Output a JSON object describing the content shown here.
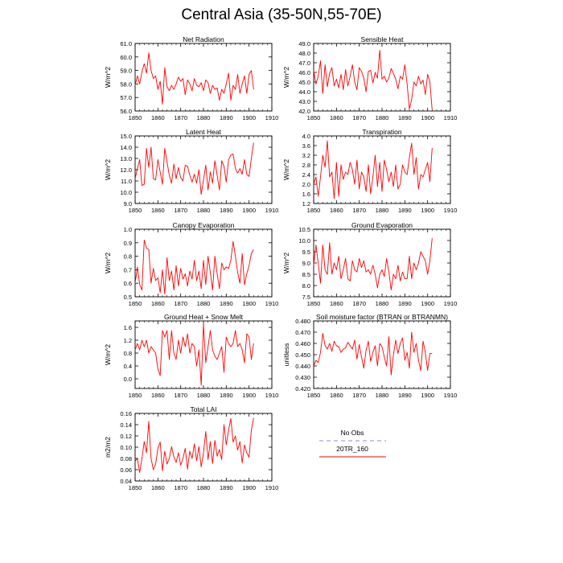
{
  "title": "Central Asia (35-50N,55-70E)",
  "legend": {
    "items": [
      {
        "label": "No Obs",
        "color": "#8a8ae6",
        "style": "dashed"
      },
      {
        "label": "20TR_160",
        "color": "#ff0000",
        "style": "solid"
      }
    ]
  },
  "colors": {
    "line": "#ff0000",
    "axis": "#000000"
  },
  "chart_data": [
    {
      "type": "line",
      "title": "Net Radiation",
      "ylabel": "W/m^2",
      "xlim": [
        1850,
        1910
      ],
      "ylim": [
        56.0,
        61.0
      ],
      "xticks": [
        1850,
        1860,
        1870,
        1880,
        1890,
        1900,
        1910
      ],
      "yticks": [
        56.0,
        57.0,
        58.0,
        59.0,
        60.0,
        61.0
      ],
      "ytick_decimals": 1,
      "x_start": 1850,
      "values": [
        57.9,
        58.6,
        58.0,
        58.9,
        59.5,
        58.8,
        60.3,
        59.0,
        58.4,
        58.6,
        57.6,
        58.2,
        56.5,
        59.2,
        57.8,
        57.5,
        57.9,
        57.6,
        58.0,
        58.5,
        58.2,
        58.4,
        57.2,
        58.3,
        58.0,
        57.5,
        58.4,
        57.9,
        57.8,
        58.1,
        57.5,
        58.3,
        58.1,
        57.3,
        57.9,
        57.6,
        57.7,
        56.8,
        57.6,
        57.3,
        58.0,
        58.8,
        56.8,
        57.9,
        57.6,
        58.7,
        57.3,
        58.0,
        58.6,
        57.3,
        58.7,
        59.0,
        57.6
      ],
      "series_name": "20TR_160"
    },
    {
      "type": "line",
      "title": "Sensible Heat",
      "ylabel": "W/m^2",
      "xlim": [
        1850,
        1910
      ],
      "ylim": [
        42.0,
        49.0
      ],
      "xticks": [
        1850,
        1860,
        1870,
        1880,
        1890,
        1900,
        1910
      ],
      "yticks": [
        42.0,
        43.0,
        44.0,
        45.0,
        46.0,
        47.0,
        48.0,
        49.0
      ],
      "ytick_decimals": 1,
      "x_start": 1850,
      "values": [
        46.2,
        44.8,
        45.6,
        47.2,
        43.8,
        46.8,
        44.5,
        45.9,
        46.5,
        44.6,
        45.3,
        44.4,
        45.8,
        44.2,
        46.3,
        44.6,
        45.6,
        46.8,
        45.0,
        44.2,
        46.5,
        46.1,
        45.4,
        44.0,
        46.1,
        46.2,
        44.9,
        46.0,
        45.4,
        48.3,
        45.3,
        45.6,
        45.0,
        45.4,
        46.4,
        45.9,
        45.3,
        44.3,
        45.6,
        45.3,
        46.8,
        44.8,
        42.2,
        43.2,
        45.0,
        44.6,
        45.6,
        44.8,
        45.2,
        43.7,
        45.8,
        45.0,
        42.1
      ],
      "series_name": "20TR_160"
    },
    {
      "type": "line",
      "title": "Latent Heat",
      "ylabel": "W/m^2",
      "xlim": [
        1850,
        1910
      ],
      "ylim": [
        9.0,
        15.0
      ],
      "xticks": [
        1850,
        1860,
        1870,
        1880,
        1890,
        1900,
        1910
      ],
      "yticks": [
        9.0,
        10.0,
        11.0,
        12.0,
        13.0,
        14.0,
        15.0
      ],
      "ytick_decimals": 1,
      "x_start": 1850,
      "values": [
        11.2,
        12.1,
        12.9,
        10.6,
        10.7,
        13.9,
        12.2,
        14.0,
        11.2,
        11.1,
        12.9,
        11.8,
        10.7,
        13.9,
        12.7,
        11.5,
        10.8,
        12.5,
        11.2,
        12.2,
        11.3,
        11.0,
        12.4,
        12.3,
        11.5,
        10.9,
        11.6,
        10.8,
        12.0,
        9.8,
        11.1,
        12.4,
        10.2,
        11.8,
        10.8,
        12.8,
        11.5,
        10.2,
        12.8,
        12.3,
        10.9,
        12.9,
        13.3,
        13.4,
        12.1,
        11.7,
        12.1,
        11.6,
        12.9,
        11.6,
        11.4,
        13.0,
        14.4
      ],
      "series_name": "20TR_160"
    },
    {
      "type": "line",
      "title": "Transpiration",
      "ylabel": "W/m^2",
      "xlim": [
        1850,
        1910
      ],
      "ylim": [
        1.2,
        4.0
      ],
      "xticks": [
        1850,
        1860,
        1870,
        1880,
        1890,
        1900,
        1910
      ],
      "yticks": [
        1.2,
        1.6,
        2.0,
        2.4,
        2.8,
        3.2,
        3.6,
        4.0
      ],
      "ytick_decimals": 1,
      "x_start": 1850,
      "values": [
        2.0,
        2.3,
        1.5,
        2.3,
        3.2,
        2.7,
        3.8,
        2.3,
        2.5,
        1.4,
        2.9,
        1.5,
        2.8,
        2.2,
        2.5,
        2.4,
        2.9,
        2.6,
        2.0,
        3.0,
        1.8,
        2.5,
        2.3,
        1.7,
        2.8,
        1.6,
        2.3,
        3.2,
        1.9,
        2.9,
        1.7,
        3.0,
        2.6,
        2.1,
        2.5,
        1.9,
        2.8,
        1.8,
        2.0,
        2.8,
        2.5,
        2.4,
        3.1,
        3.7,
        2.4,
        3.1,
        1.8,
        2.4,
        2.3,
        2.6,
        2.9,
        2.1,
        3.5
      ],
      "series_name": "20TR_160"
    },
    {
      "type": "line",
      "title": "Canopy Evaporation",
      "ylabel": "W/m^2",
      "xlim": [
        1850,
        1910
      ],
      "ylim": [
        0.5,
        1.0
      ],
      "xticks": [
        1850,
        1860,
        1870,
        1880,
        1890,
        1900,
        1910
      ],
      "yticks": [
        0.5,
        0.6,
        0.7,
        0.8,
        0.9,
        1.0
      ],
      "ytick_decimals": 1,
      "x_start": 1850,
      "values": [
        0.6,
        0.72,
        0.59,
        0.55,
        0.92,
        0.86,
        0.85,
        0.6,
        0.71,
        0.62,
        0.64,
        0.53,
        0.7,
        0.52,
        0.79,
        0.62,
        0.69,
        0.55,
        0.73,
        0.58,
        0.71,
        0.63,
        0.67,
        0.58,
        0.69,
        0.63,
        0.77,
        0.62,
        0.69,
        0.56,
        0.77,
        0.59,
        0.8,
        0.68,
        0.55,
        0.8,
        0.67,
        0.56,
        0.75,
        0.7,
        0.72,
        0.71,
        0.77,
        0.91,
        0.8,
        0.68,
        0.6,
        0.82,
        0.59,
        0.67,
        0.73,
        0.82,
        0.85
      ],
      "series_name": "20TR_160"
    },
    {
      "type": "line",
      "title": "Ground Evaporation",
      "ylabel": "W/m^2",
      "xlim": [
        1850,
        1910
      ],
      "ylim": [
        7.5,
        10.5
      ],
      "xticks": [
        1850,
        1860,
        1870,
        1880,
        1890,
        1900,
        1910
      ],
      "yticks": [
        7.5,
        8.0,
        8.5,
        9.0,
        9.5,
        10.0,
        10.5
      ],
      "ytick_decimals": 1,
      "x_start": 1850,
      "values": [
        8.9,
        9.8,
        9.0,
        8.1,
        9.8,
        8.7,
        8.5,
        9.9,
        8.5,
        9.0,
        8.7,
        9.3,
        8.3,
        8.7,
        9.2,
        8.3,
        8.2,
        9.1,
        8.7,
        8.6,
        9.2,
        8.8,
        9.1,
        8.6,
        8.7,
        8.5,
        8.9,
        8.5,
        7.9,
        8.5,
        8.7,
        8.4,
        9.2,
        8.6,
        7.8,
        8.5,
        8.3,
        8.9,
        8.2,
        8.6,
        8.3,
        8.3,
        9.3,
        8.3,
        9.0,
        8.7,
        9.0,
        9.5,
        9.3,
        9.1,
        8.5,
        9.1,
        10.1
      ],
      "series_name": "20TR_160"
    },
    {
      "type": "line",
      "title": "Ground Heat + Snow Melt",
      "ylabel": "W/m^2",
      "xlim": [
        1850,
        1910
      ],
      "ylim": [
        -0.3,
        1.8
      ],
      "xticks": [
        1850,
        1860,
        1870,
        1880,
        1890,
        1900,
        1910
      ],
      "yticks": [
        0.0,
        0.4,
        0.8,
        1.2,
        1.6
      ],
      "ytick_decimals": 1,
      "x_start": 1850,
      "values": [
        0.9,
        1.1,
        0.9,
        1.2,
        1.0,
        1.2,
        0.8,
        1.0,
        0.9,
        0.8,
        0.3,
        0.1,
        1.5,
        1.3,
        1.5,
        0.6,
        1.5,
        0.8,
        0.6,
        1.2,
        0.8,
        1.3,
        1.0,
        1.4,
        0.8,
        1.1,
        1.0,
        0.4,
        0.9,
        -0.2,
        1.7,
        0.5,
        1.0,
        1.5,
        0.9,
        0.7,
        0.6,
        0.8,
        1.0,
        0.2,
        1.3,
        1.1,
        1.0,
        1.1,
        1.5,
        1.0,
        1.1,
        0.9,
        0.5,
        1.4,
        1.3,
        0.6,
        1.1
      ],
      "series_name": "20TR_160"
    },
    {
      "type": "line",
      "title": "Soil moisture factor (BTRAN or BTRANMN)",
      "ylabel": "unitless",
      "xlim": [
        1850,
        1910
      ],
      "ylim": [
        0.42,
        0.48
      ],
      "xticks": [
        1850,
        1860,
        1870,
        1880,
        1890,
        1900,
        1910
      ],
      "yticks": [
        0.42,
        0.43,
        0.44,
        0.45,
        0.46,
        0.47,
        0.48
      ],
      "ytick_decimals": 3,
      "x_start": 1850,
      "values": [
        0.44,
        0.445,
        0.443,
        0.452,
        0.469,
        0.458,
        0.455,
        0.46,
        0.453,
        0.462,
        0.458,
        0.457,
        0.452,
        0.455,
        0.456,
        0.461,
        0.458,
        0.455,
        0.463,
        0.446,
        0.459,
        0.448,
        0.438,
        0.454,
        0.462,
        0.444,
        0.452,
        0.458,
        0.44,
        0.46,
        0.457,
        0.448,
        0.44,
        0.466,
        0.432,
        0.45,
        0.463,
        0.451,
        0.46,
        0.465,
        0.445,
        0.452,
        0.438,
        0.47,
        0.452,
        0.46,
        0.445,
        0.436,
        0.462,
        0.452,
        0.436,
        0.451,
        0.451
      ],
      "series_name": "20TR_160"
    },
    {
      "type": "line",
      "title": "Total LAI",
      "ylabel": "m2/m2",
      "xlim": [
        1850,
        1910
      ],
      "ylim": [
        0.04,
        0.16
      ],
      "xticks": [
        1850,
        1860,
        1870,
        1880,
        1890,
        1900,
        1910
      ],
      "yticks": [
        0.04,
        0.06,
        0.08,
        0.1,
        0.12,
        0.14,
        0.16
      ],
      "ytick_decimals": 2,
      "x_start": 1850,
      "values": [
        0.075,
        0.08,
        0.055,
        0.08,
        0.11,
        0.09,
        0.146,
        0.08,
        0.06,
        0.07,
        0.098,
        0.109,
        0.058,
        0.093,
        0.07,
        0.08,
        0.101,
        0.083,
        0.073,
        0.09,
        0.068,
        0.08,
        0.098,
        0.061,
        0.093,
        0.08,
        0.106,
        0.076,
        0.101,
        0.065,
        0.09,
        0.128,
        0.078,
        0.11,
        0.071,
        0.112,
        0.084,
        0.096,
        0.078,
        0.14,
        0.104,
        0.13,
        0.151,
        0.109,
        0.12,
        0.095,
        0.11,
        0.072,
        0.104,
        0.09,
        0.082,
        0.13,
        0.152
      ],
      "series_name": "20TR_160"
    }
  ]
}
